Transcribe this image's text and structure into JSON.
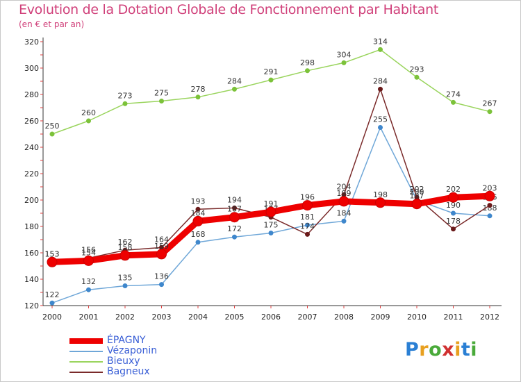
{
  "title": "Evolution de la Dotation Globale de Fonctionnement par Habitant",
  "subtitle": "(en € et par an)",
  "logo": {
    "text": "Proxiti",
    "colors": [
      "#2a7fd4",
      "#e8a020",
      "#4aaa3a",
      "#d03030",
      "#e8a020",
      "#2a7fd4",
      "#4aaa3a"
    ]
  },
  "chart_data": {
    "type": "line",
    "title": "Evolution de la Dotation Globale de Fonctionnement par Habitant",
    "subtitle": "(en € et par an)",
    "xlabel": "",
    "ylabel": "",
    "categories": [
      "2000",
      "2001",
      "2002",
      "2003",
      "2004",
      "2005",
      "2006",
      "2007",
      "2008",
      "2009",
      "2010",
      "2011",
      "2012"
    ],
    "ylim": [
      120,
      320
    ],
    "yticks": [
      "120",
      "140",
      "160",
      "180",
      "200",
      "220",
      "240",
      "260",
      "280",
      "300",
      "320"
    ],
    "grid": false,
    "legend_position": "bottom-left",
    "series": [
      {
        "name": "Bieuxy",
        "color": "#99d45c",
        "marker": "#7cc23a",
        "values": [
          250,
          260,
          273,
          275,
          278,
          284,
          291,
          298,
          304,
          314,
          293,
          274,
          267
        ],
        "labels": [
          "250",
          "260",
          "273",
          "275",
          "278",
          "284",
          "291",
          "298",
          "304",
          "314",
          "293",
          "274",
          "267"
        ]
      },
      {
        "name": "Vézaponin",
        "color": "#6fa7d8",
        "marker": "#3f87cc",
        "values": [
          122,
          132,
          135,
          136,
          168,
          172,
          175,
          181,
          184,
          255,
          200,
          190,
          188
        ],
        "labels": [
          "122",
          "132",
          "135",
          "136",
          "168",
          "172",
          "175",
          "181",
          "184",
          "255",
          "200",
          "190",
          "188"
        ]
      },
      {
        "name": "Bagneux",
        "color": "#7a2a2a",
        "marker": "#6a1a1a",
        "values": [
          153,
          156,
          162,
          164,
          193,
          194,
          187,
          174,
          204,
          284,
          202,
          178,
          196
        ],
        "labels": [
          "153",
          "156",
          "162",
          "164",
          "193",
          "194",
          "187",
          "174",
          "204",
          "284",
          "202",
          "178",
          "196"
        ]
      },
      {
        "name": "ÉPAGNY",
        "color": "#ee0000",
        "marker": "#ee0000",
        "values": [
          153,
          154,
          158,
          159,
          184,
          187,
          191,
          196,
          199,
          198,
          197,
          202,
          203
        ],
        "labels": [
          "153",
          "154",
          "158",
          "159",
          "184",
          "187",
          "191",
          "196",
          "199",
          "198",
          "197",
          "202",
          "203"
        ]
      }
    ]
  },
  "legend": [
    {
      "name": "ÉPAGNY",
      "color": "#ee0000",
      "width": 8
    },
    {
      "name": "Vézaponin",
      "color": "#6fa7d8",
      "width": 2
    },
    {
      "name": "Bieuxy",
      "color": "#99d45c",
      "width": 2
    },
    {
      "name": "Bagneux",
      "color": "#7a2a2a",
      "width": 2
    }
  ]
}
